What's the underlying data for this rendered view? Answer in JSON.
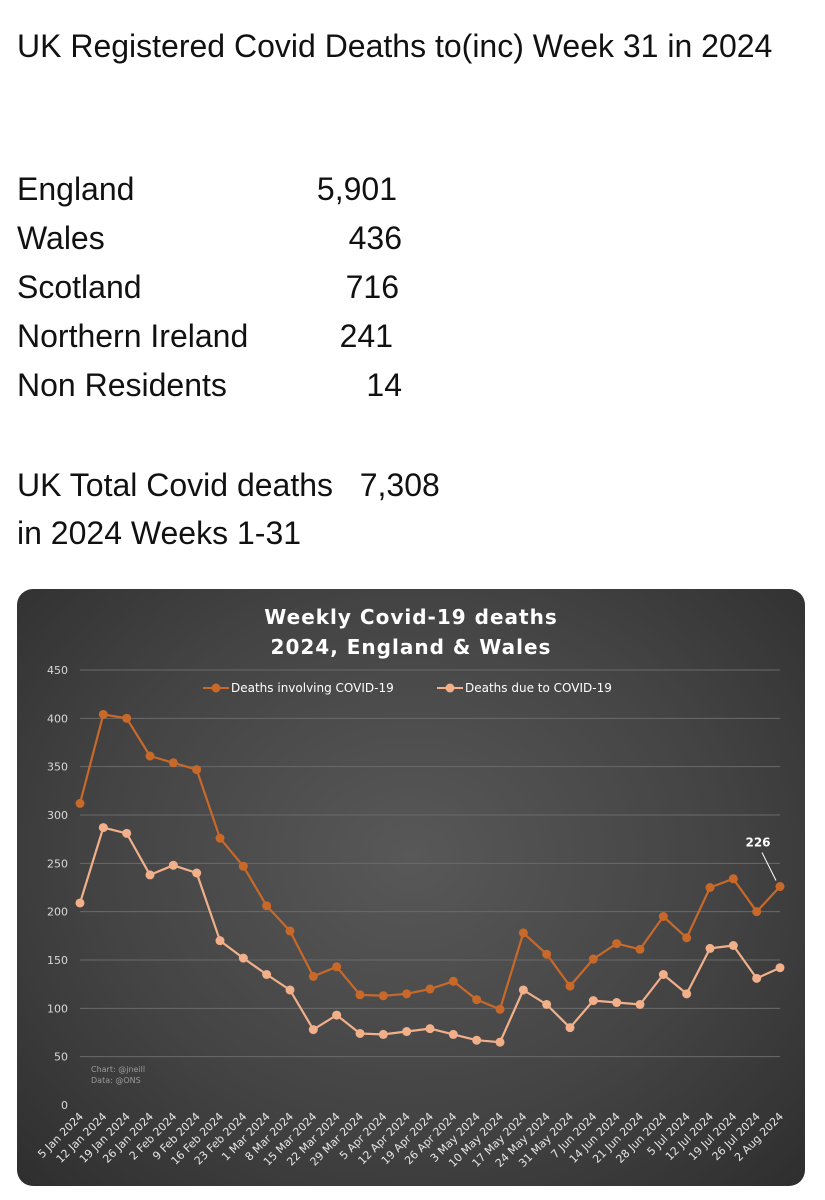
{
  "post": {
    "headline": "UK Registered Covid Deaths to(inc) Week 31 in 2024",
    "stats": [
      {
        "label": "England",
        "value": "5,901"
      },
      {
        "label": "Wales",
        "value": "436"
      },
      {
        "label": "Scotland",
        "value": "716"
      },
      {
        "label": "Northern Ireland",
        "value": "241"
      },
      {
        "label": "Non Residents",
        "value": "14"
      }
    ],
    "total_line1": "UK Total Covid deaths   7,308",
    "total_line2": "in 2024 Weeks 1-31"
  },
  "chart_data": {
    "type": "line",
    "title": "Weekly Covid-19 deaths",
    "subtitle": "2024, England & Wales",
    "credit_line1": "Chart: @jneill",
    "credit_line2": "Data: @ONS",
    "ylim": [
      0,
      450
    ],
    "yticks": [
      0,
      50,
      100,
      150,
      200,
      250,
      300,
      350,
      400,
      450
    ],
    "grid": true,
    "legend_position": "top",
    "annotation": {
      "text": "226",
      "series": 0,
      "index": 30
    },
    "categories": [
      "5 Jan 2024",
      "12 Jan 2024",
      "19 Jan 2024",
      "26 Jan 2024",
      "2 Feb 2024",
      "9 Feb 2024",
      "16 Feb 2024",
      "23 Feb 2024",
      "1 Mar 2024",
      "8 Mar 2024",
      "15 Mar 2024",
      "22 Mar 2024",
      "29 Mar 2024",
      "5 Apr 2024",
      "12 Apr 2024",
      "19 Apr 2024",
      "26 Apr 2024",
      "3 May 2024",
      "10 May 2024",
      "17 May 2024",
      "24 May 2024",
      "31 May 2024",
      "7 Jun 2024",
      "14 Jun 2024",
      "21 Jun 2024",
      "28 Jun 2024",
      "5 Jul 2024",
      "12 Jul 2024",
      "19 Jul 2024",
      "26 Jul 2024",
      "2 Aug 2024"
    ],
    "series": [
      {
        "name": "Deaths involving COVID-19",
        "color": "#c8692a",
        "values": [
          312,
          404,
          400,
          361,
          354,
          347,
          276,
          247,
          206,
          180,
          133,
          143,
          114,
          113,
          115,
          120,
          128,
          109,
          99,
          178,
          156,
          123,
          151,
          167,
          161,
          195,
          173,
          225,
          234,
          200,
          226
        ]
      },
      {
        "name": "Deaths due to COVID-19",
        "color": "#f2b08a",
        "values": [
          209,
          287,
          281,
          238,
          248,
          240,
          170,
          152,
          135,
          119,
          78,
          93,
          74,
          73,
          76,
          79,
          73,
          67,
          65,
          119,
          104,
          80,
          108,
          106,
          104,
          135,
          115,
          162,
          165,
          131,
          142
        ]
      }
    ]
  }
}
